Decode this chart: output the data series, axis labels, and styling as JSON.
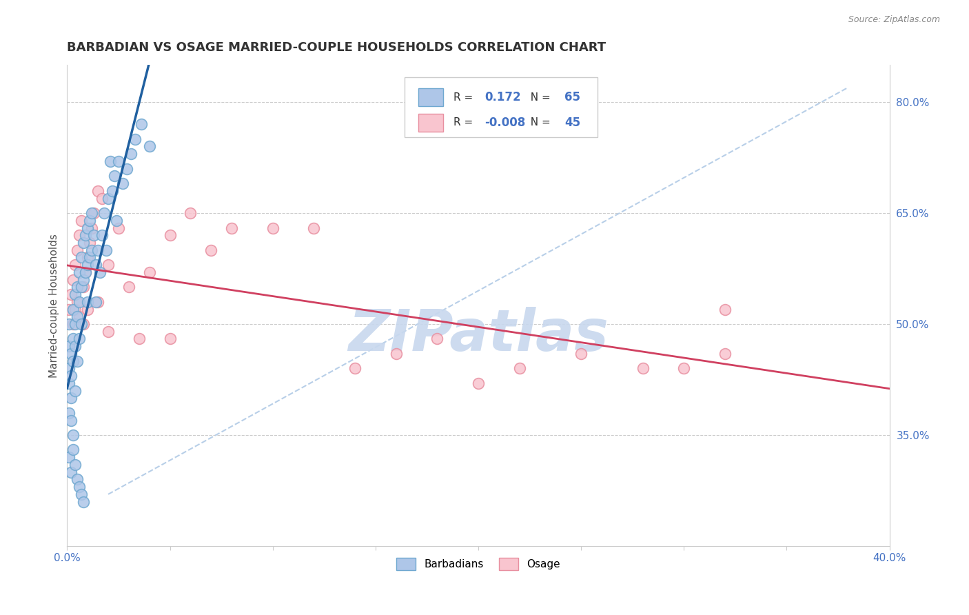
{
  "title": "BARBADIAN VS OSAGE MARRIED-COUPLE HOUSEHOLDS CORRELATION CHART",
  "source": "Source: ZipAtlas.com",
  "ylabel": "Married-couple Households",
  "xlim": [
    0.0,
    0.4
  ],
  "ylim": [
    0.2,
    0.85
  ],
  "y_ticks_right": [
    0.35,
    0.5,
    0.65,
    0.8
  ],
  "y_tick_labels_right": [
    "35.0%",
    "50.0%",
    "65.0%",
    "80.0%"
  ],
  "r_blue": 0.172,
  "n_blue": 65,
  "r_pink": -0.008,
  "n_pink": 45,
  "blue_face": "#aec6e8",
  "blue_edge": "#6fa8d0",
  "pink_face": "#f9c5cf",
  "pink_edge": "#e88fa0",
  "trend_blue_color": "#2060a0",
  "trend_pink_color": "#d04060",
  "diag_color": "#b8cfe8",
  "watermark_color": "#c8d8ee",
  "legend_blue_label": "Barbadians",
  "legend_pink_label": "Osage",
  "blue_x": [
    0.001,
    0.001,
    0.001,
    0.001,
    0.001,
    0.002,
    0.002,
    0.002,
    0.002,
    0.003,
    0.003,
    0.003,
    0.003,
    0.004,
    0.004,
    0.004,
    0.004,
    0.005,
    0.005,
    0.005,
    0.006,
    0.006,
    0.006,
    0.007,
    0.007,
    0.007,
    0.008,
    0.008,
    0.009,
    0.009,
    0.01,
    0.01,
    0.01,
    0.011,
    0.011,
    0.012,
    0.012,
    0.013,
    0.014,
    0.014,
    0.015,
    0.016,
    0.017,
    0.018,
    0.019,
    0.02,
    0.021,
    0.022,
    0.023,
    0.024,
    0.025,
    0.027,
    0.029,
    0.031,
    0.033,
    0.036,
    0.04,
    0.001,
    0.002,
    0.003,
    0.004,
    0.005,
    0.006,
    0.007,
    0.008
  ],
  "blue_y": [
    0.44,
    0.47,
    0.42,
    0.38,
    0.5,
    0.46,
    0.43,
    0.4,
    0.37,
    0.52,
    0.48,
    0.45,
    0.35,
    0.54,
    0.5,
    0.47,
    0.41,
    0.55,
    0.51,
    0.45,
    0.57,
    0.53,
    0.48,
    0.59,
    0.55,
    0.5,
    0.61,
    0.56,
    0.62,
    0.57,
    0.63,
    0.58,
    0.53,
    0.64,
    0.59,
    0.65,
    0.6,
    0.62,
    0.58,
    0.53,
    0.6,
    0.57,
    0.62,
    0.65,
    0.6,
    0.67,
    0.72,
    0.68,
    0.7,
    0.64,
    0.72,
    0.69,
    0.71,
    0.73,
    0.75,
    0.77,
    0.74,
    0.32,
    0.3,
    0.33,
    0.31,
    0.29,
    0.28,
    0.27,
    0.26
  ],
  "pink_x": [
    0.001,
    0.002,
    0.003,
    0.003,
    0.004,
    0.005,
    0.005,
    0.006,
    0.007,
    0.008,
    0.009,
    0.01,
    0.011,
    0.012,
    0.013,
    0.015,
    0.017,
    0.02,
    0.025,
    0.03,
    0.04,
    0.05,
    0.06,
    0.07,
    0.08,
    0.1,
    0.12,
    0.14,
    0.16,
    0.18,
    0.2,
    0.22,
    0.25,
    0.28,
    0.3,
    0.32,
    0.004,
    0.006,
    0.008,
    0.01,
    0.015,
    0.02,
    0.035,
    0.05,
    0.32
  ],
  "pink_y": [
    0.52,
    0.54,
    0.56,
    0.5,
    0.58,
    0.6,
    0.53,
    0.62,
    0.64,
    0.55,
    0.57,
    0.59,
    0.61,
    0.63,
    0.65,
    0.68,
    0.67,
    0.58,
    0.63,
    0.55,
    0.57,
    0.62,
    0.65,
    0.6,
    0.63,
    0.63,
    0.63,
    0.44,
    0.46,
    0.48,
    0.42,
    0.44,
    0.46,
    0.44,
    0.44,
    0.52,
    0.52,
    0.51,
    0.5,
    0.52,
    0.53,
    0.49,
    0.48,
    0.48,
    0.46
  ]
}
